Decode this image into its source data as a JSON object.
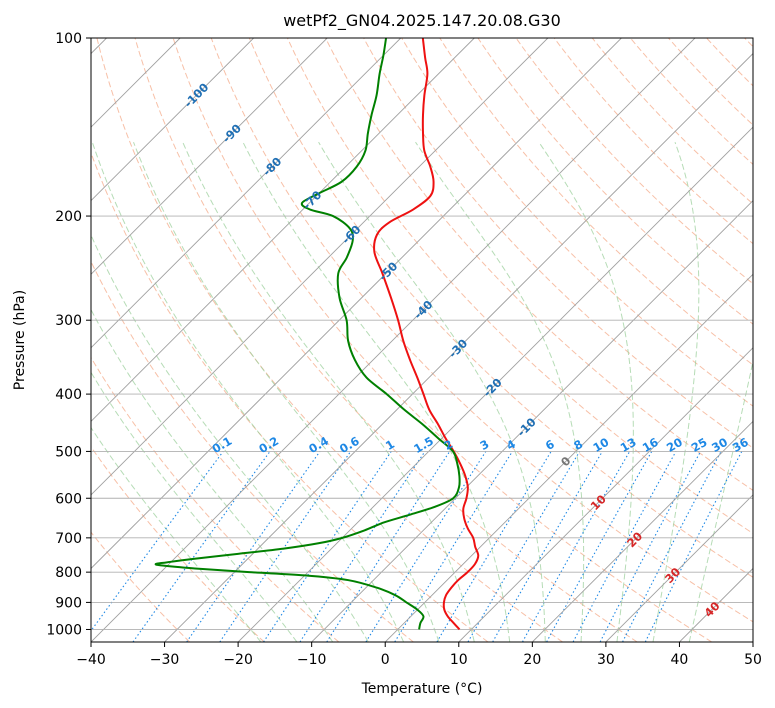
{
  "chart_data": {
    "type": "line",
    "subtype": "skew-T log-P diagram",
    "title": "wetPf2_GN04.2025.147.20.08.G30",
    "xlabel": "Temperature (°C)",
    "ylabel": "Pressure (hPa)",
    "xlim": [
      -40,
      50
    ],
    "ylim": [
      1050,
      100
    ],
    "y_scale": "log",
    "grid": true,
    "x_ticks": [
      -40,
      -30,
      -20,
      -10,
      0,
      10,
      20,
      30,
      40,
      50
    ],
    "y_ticks": [
      1000,
      900,
      800,
      700,
      600,
      500,
      400,
      300,
      200,
      100
    ],
    "isotherm_labels": [
      -100,
      -90,
      -80,
      -70,
      -60,
      -50,
      -40,
      -30,
      -20,
      -10,
      0,
      10,
      20,
      30,
      40
    ],
    "mixing_ratio_labels": [
      "0.1",
      "0.2",
      "0.4",
      "0.6",
      "1",
      "1.5",
      "2",
      "3",
      "4",
      "6",
      "8",
      "10",
      "13",
      "16",
      "20",
      "25",
      "30",
      "36"
    ],
    "series": [
      {
        "role": "temperature",
        "color": "#ee1111",
        "points": [
          {
            "p": 1000,
            "t": 8.4
          },
          {
            "p": 975,
            "t": 6.7
          },
          {
            "p": 950,
            "t": 5.0
          },
          {
            "p": 925,
            "t": 3.6
          },
          {
            "p": 900,
            "t": 2.6
          },
          {
            "p": 875,
            "t": 1.9
          },
          {
            "p": 850,
            "t": 1.6
          },
          {
            "p": 825,
            "t": 1.5
          },
          {
            "p": 800,
            "t": 1.7
          },
          {
            "p": 775,
            "t": 1.6
          },
          {
            "p": 750,
            "t": 0.9
          },
          {
            "p": 725,
            "t": -0.7
          },
          {
            "p": 700,
            "t": -2.2
          },
          {
            "p": 675,
            "t": -4.2
          },
          {
            "p": 650,
            "t": -6.0
          },
          {
            "p": 625,
            "t": -7.5
          },
          {
            "p": 600,
            "t": -8.5
          },
          {
            "p": 575,
            "t": -9.8
          },
          {
            "p": 550,
            "t": -11.7
          },
          {
            "p": 525,
            "t": -14.0
          },
          {
            "p": 500,
            "t": -16.6
          },
          {
            "p": 475,
            "t": -19.5
          },
          {
            "p": 450,
            "t": -22.4
          },
          {
            "p": 425,
            "t": -25.6
          },
          {
            "p": 400,
            "t": -28.5
          },
          {
            "p": 375,
            "t": -31.6
          },
          {
            "p": 350,
            "t": -35.0
          },
          {
            "p": 325,
            "t": -38.5
          },
          {
            "p": 300,
            "t": -42.0
          },
          {
            "p": 275,
            "t": -46.0
          },
          {
            "p": 250,
            "t": -50.5
          },
          {
            "p": 230,
            "t": -54.5
          },
          {
            "p": 215,
            "t": -56.5
          },
          {
            "p": 205,
            "t": -56.5
          },
          {
            "p": 195,
            "t": -55.0
          },
          {
            "p": 185,
            "t": -54.5
          },
          {
            "p": 175,
            "t": -56.0
          },
          {
            "p": 165,
            "t": -58.5
          },
          {
            "p": 155,
            "t": -61.5
          },
          {
            "p": 145,
            "t": -64.0
          },
          {
            "p": 135,
            "t": -66.5
          },
          {
            "p": 125,
            "t": -69.0
          },
          {
            "p": 115,
            "t": -71.5
          },
          {
            "p": 108,
            "t": -74.0
          },
          {
            "p": 100,
            "t": -77.0
          }
        ]
      },
      {
        "role": "dewpoint",
        "color": "#008000",
        "points": [
          {
            "p": 1000,
            "t": 2.9
          },
          {
            "p": 975,
            "t": 2.2
          },
          {
            "p": 950,
            "t": 1.7
          },
          {
            "p": 925,
            "t": -0.1
          },
          {
            "p": 900,
            "t": -2.5
          },
          {
            "p": 875,
            "t": -5.0
          },
          {
            "p": 850,
            "t": -8.5
          },
          {
            "p": 825,
            "t": -13.5
          },
          {
            "p": 810,
            "t": -20.0
          },
          {
            "p": 800,
            "t": -28.0
          },
          {
            "p": 790,
            "t": -35.0
          },
          {
            "p": 780,
            "t": -40.5
          },
          {
            "p": 775,
            "t": -41.8
          },
          {
            "p": 770,
            "t": -40.5
          },
          {
            "p": 760,
            "t": -37.5
          },
          {
            "p": 745,
            "t": -32.0
          },
          {
            "p": 730,
            "t": -26.5
          },
          {
            "p": 715,
            "t": -22.5
          },
          {
            "p": 700,
            "t": -20.0
          },
          {
            "p": 680,
            "t": -18.0
          },
          {
            "p": 660,
            "t": -16.5
          },
          {
            "p": 640,
            "t": -14.0
          },
          {
            "p": 620,
            "t": -11.6
          },
          {
            "p": 600,
            "t": -10.3
          },
          {
            "p": 575,
            "t": -11.0
          },
          {
            "p": 550,
            "t": -12.5
          },
          {
            "p": 525,
            "t": -14.4
          },
          {
            "p": 500,
            "t": -16.7
          },
          {
            "p": 475,
            "t": -20.5
          },
          {
            "p": 450,
            "t": -24.5
          },
          {
            "p": 425,
            "t": -29.0
          },
          {
            "p": 400,
            "t": -33.5
          },
          {
            "p": 375,
            "t": -38.5
          },
          {
            "p": 350,
            "t": -42.5
          },
          {
            "p": 325,
            "t": -46.0
          },
          {
            "p": 300,
            "t": -49.0
          },
          {
            "p": 275,
            "t": -53.0
          },
          {
            "p": 250,
            "t": -56.5
          },
          {
            "p": 235,
            "t": -57.5
          },
          {
            "p": 220,
            "t": -59.0
          },
          {
            "p": 210,
            "t": -61.0
          },
          {
            "p": 200,
            "t": -65.0
          },
          {
            "p": 195,
            "t": -69.0
          },
          {
            "p": 190,
            "t": -71.0
          },
          {
            "p": 183,
            "t": -70.0
          },
          {
            "p": 175,
            "t": -68.5
          },
          {
            "p": 165,
            "t": -68.5
          },
          {
            "p": 155,
            "t": -69.5
          },
          {
            "p": 145,
            "t": -71.5
          },
          {
            "p": 135,
            "t": -73.5
          },
          {
            "p": 125,
            "t": -75.5
          },
          {
            "p": 115,
            "t": -78.0
          },
          {
            "p": 107,
            "t": -80.0
          },
          {
            "p": 100,
            "t": -82.0
          }
        ]
      }
    ]
  }
}
